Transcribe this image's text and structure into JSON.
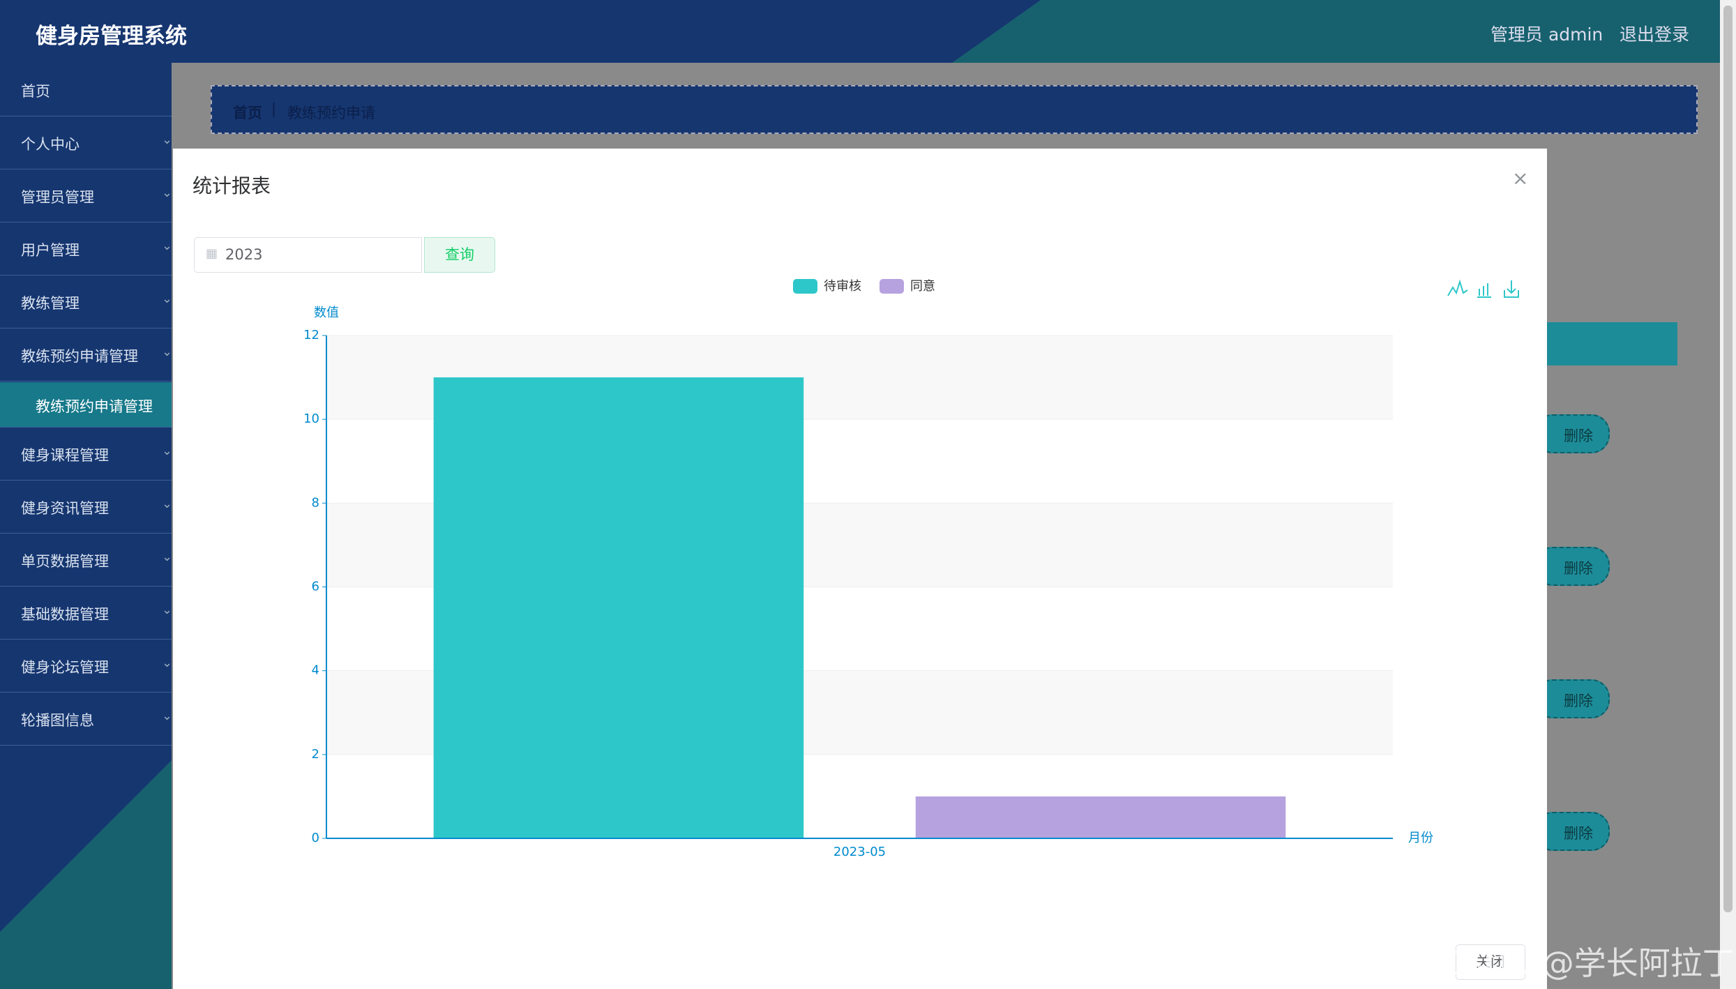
{
  "header": {
    "title": "健身房管理系统",
    "user": "管理员 admin",
    "logout": "退出登录"
  },
  "sidebar": {
    "items": [
      "首页",
      "个人中心",
      "管理员管理",
      "用户管理",
      "教练管理",
      "教练预约申请管理"
    ],
    "active_sub": "教练预约申请管理",
    "items_after": [
      "健身课程管理",
      "健身资讯管理",
      "单页数据管理",
      "基础数据管理",
      "健身论坛管理",
      "轮播图信息"
    ]
  },
  "breadcrumb": {
    "home": "首页",
    "current": "教练预约申请"
  },
  "table": {
    "delete_buttons": [
      "删除",
      "删除",
      "删除",
      "删除"
    ]
  },
  "dialog": {
    "title": "统计报表",
    "date": "2023",
    "query": "查询",
    "close": "关闭"
  },
  "watermark": "CSDN @学长阿拉丁",
  "chart_data": {
    "type": "bar",
    "categories": [
      "2023-05"
    ],
    "series": [
      {
        "name": "待审核",
        "color": "#2ec7c9",
        "values": [
          11
        ]
      },
      {
        "name": "同意",
        "color": "#b6a2de",
        "values": [
          1
        ]
      }
    ],
    "ylabel": "数值",
    "xlabel": "月份",
    "ylim": [
      0,
      12
    ],
    "yticks": [
      0,
      2,
      4,
      6,
      8,
      10,
      12
    ],
    "grid": true,
    "legend": "top"
  }
}
